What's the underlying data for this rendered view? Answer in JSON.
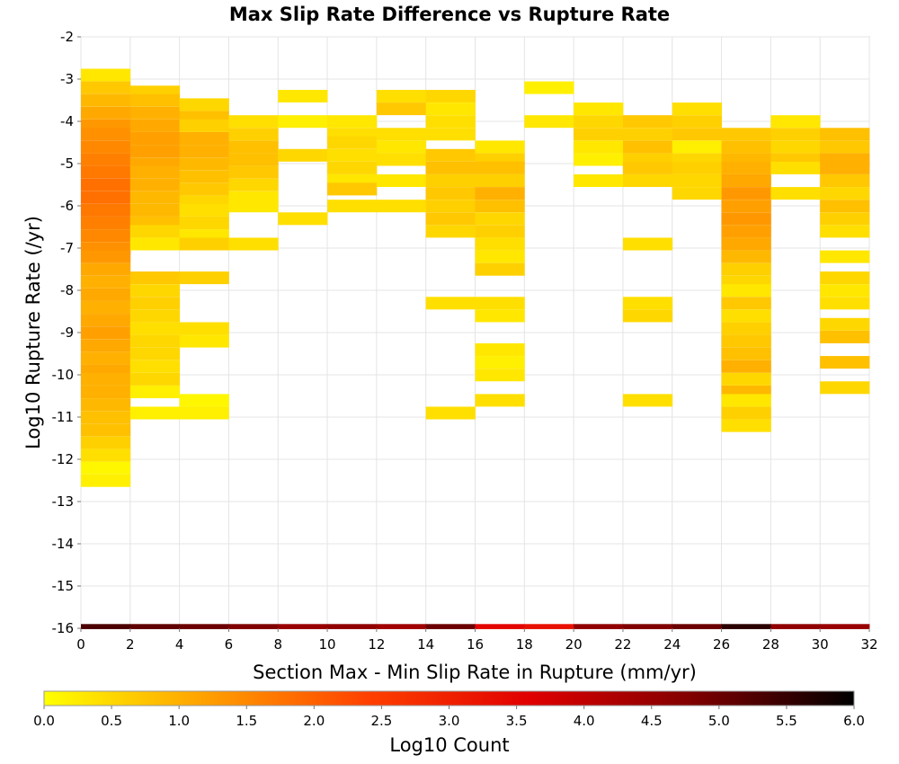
{
  "chart_data": {
    "type": "heatmap",
    "title": "Max Slip Rate Difference vs Rupture Rate",
    "xlabel": "Section Max - Min Slip Rate in Rupture (mm/yr)",
    "ylabel": "Log10 Rupture Rate (/yr)",
    "xlim": [
      0,
      32
    ],
    "ylim": [
      -16,
      -2
    ],
    "x_ticks": [
      "0",
      "2",
      "4",
      "6",
      "8",
      "10",
      "12",
      "14",
      "16",
      "18",
      "20",
      "22",
      "24",
      "26",
      "28",
      "30",
      "32"
    ],
    "y_ticks": [
      "-2",
      "-3",
      "-4",
      "-5",
      "-6",
      "-7",
      "-8",
      "-9",
      "-10",
      "-11",
      "-12",
      "-13",
      "-14",
      "-15",
      "-16"
    ],
    "x_bin_width": 2,
    "y_bin_height": 0.29,
    "grid": true,
    "colorbar": {
      "label": "Log10 Count",
      "range": [
        0,
        6
      ],
      "ticks": [
        "0.0",
        "0.5",
        "1.0",
        "1.5",
        "2.0",
        "2.5",
        "3.0",
        "3.5",
        "4.0",
        "4.5",
        "5.0",
        "5.5",
        "6.0"
      ],
      "colors": [
        "#ffff00",
        "#ffa000",
        "#ff4000",
        "#e00000",
        "#800000",
        "#000000"
      ]
    },
    "columns": [
      {
        "x": 1,
        "cells": [
          [
            -2.9,
            0.3
          ],
          [
            -3.2,
            0.7
          ],
          [
            -3.5,
            0.9
          ],
          [
            -3.8,
            1.1
          ],
          [
            -4.1,
            1.3
          ],
          [
            -4.3,
            1.4
          ],
          [
            -4.6,
            1.5
          ],
          [
            -4.9,
            1.6
          ],
          [
            -5.2,
            1.7
          ],
          [
            -5.5,
            1.8
          ],
          [
            -5.8,
            1.8
          ],
          [
            -6.1,
            1.7
          ],
          [
            -6.4,
            1.6
          ],
          [
            -6.7,
            1.5
          ],
          [
            -7.0,
            1.4
          ],
          [
            -7.2,
            1.3
          ],
          [
            -7.5,
            1.1
          ],
          [
            -7.8,
            1.0
          ],
          [
            -8.1,
            1.1
          ],
          [
            -8.4,
            1.0
          ],
          [
            -8.7,
            1.1
          ],
          [
            -9.0,
            1.2
          ],
          [
            -9.3,
            1.1
          ],
          [
            -9.6,
            1.0
          ],
          [
            -9.9,
            1.1
          ],
          [
            -10.1,
            1.0
          ],
          [
            -10.4,
            1.0
          ],
          [
            -10.7,
            0.9
          ],
          [
            -11.0,
            0.8
          ],
          [
            -11.3,
            0.8
          ],
          [
            -11.6,
            0.6
          ],
          [
            -11.9,
            0.4
          ],
          [
            -12.2,
            0.1
          ],
          [
            -12.5,
            0.2
          ]
        ]
      },
      {
        "x": 3,
        "cells": [
          [
            -3.3,
            0.6
          ],
          [
            -3.5,
            0.8
          ],
          [
            -3.8,
            1.0
          ],
          [
            -4.1,
            1.1
          ],
          [
            -4.4,
            1.2
          ],
          [
            -4.7,
            1.2
          ],
          [
            -5.0,
            1.1
          ],
          [
            -5.2,
            1.0
          ],
          [
            -5.5,
            1.0
          ],
          [
            -5.8,
            0.9
          ],
          [
            -6.1,
            0.9
          ],
          [
            -6.4,
            0.8
          ],
          [
            -6.6,
            0.5
          ],
          [
            -6.9,
            0.3
          ],
          [
            -7.7,
            0.7
          ],
          [
            -8.0,
            0.5
          ],
          [
            -8.3,
            0.6
          ],
          [
            -8.6,
            0.5
          ],
          [
            -8.9,
            0.4
          ],
          [
            -9.2,
            0.5
          ],
          [
            -9.5,
            0.5
          ],
          [
            -9.8,
            0.4
          ],
          [
            -10.1,
            0.5
          ],
          [
            -10.4,
            0.2
          ],
          [
            -10.9,
            0.2
          ]
        ]
      },
      {
        "x": 5,
        "cells": [
          [
            -3.6,
            0.5
          ],
          [
            -3.9,
            0.8
          ],
          [
            -4.1,
            0.6
          ],
          [
            -4.4,
            1.0
          ],
          [
            -4.7,
            1.0
          ],
          [
            -5.0,
            0.9
          ],
          [
            -5.3,
            0.8
          ],
          [
            -5.6,
            0.7
          ],
          [
            -5.9,
            0.5
          ],
          [
            -6.1,
            0.4
          ],
          [
            -6.4,
            0.5
          ],
          [
            -6.7,
            0.3
          ],
          [
            -6.9,
            0.6
          ],
          [
            -7.7,
            0.6
          ],
          [
            -8.9,
            0.4
          ],
          [
            -9.2,
            0.3
          ],
          [
            -10.6,
            0.1
          ],
          [
            -10.9,
            0.2
          ]
        ]
      },
      {
        "x": 7,
        "cells": [
          [
            -4.0,
            0.4
          ],
          [
            -4.3,
            0.6
          ],
          [
            -4.6,
            0.8
          ],
          [
            -4.9,
            0.8
          ],
          [
            -5.2,
            0.7
          ],
          [
            -5.5,
            0.5
          ],
          [
            -5.8,
            0.3
          ],
          [
            -6.0,
            0.3
          ],
          [
            -6.9,
            0.4
          ]
        ]
      },
      {
        "x": 9,
        "cells": [
          [
            -3.4,
            0.3
          ],
          [
            -4.0,
            0.2
          ],
          [
            -4.8,
            0.5
          ],
          [
            -6.3,
            0.4
          ]
        ]
      },
      {
        "x": 11,
        "cells": [
          [
            -4.0,
            0.3
          ],
          [
            -4.3,
            0.4
          ],
          [
            -4.5,
            0.5
          ],
          [
            -4.8,
            0.4
          ],
          [
            -5.1,
            0.5
          ],
          [
            -5.4,
            0.3
          ],
          [
            -5.6,
            0.7
          ],
          [
            -6.0,
            0.4
          ]
        ]
      },
      {
        "x": 13,
        "cells": [
          [
            -3.4,
            0.4
          ],
          [
            -3.7,
            0.7
          ],
          [
            -4.3,
            0.4
          ],
          [
            -4.6,
            0.3
          ],
          [
            -4.9,
            0.4
          ],
          [
            -5.4,
            0.3
          ],
          [
            -6.0,
            0.4
          ]
        ]
      },
      {
        "x": 15,
        "cells": [
          [
            -3.4,
            0.5
          ],
          [
            -3.7,
            0.3
          ],
          [
            -4.0,
            0.4
          ],
          [
            -4.3,
            0.4
          ],
          [
            -4.8,
            0.7
          ],
          [
            -5.1,
            0.8
          ],
          [
            -5.4,
            0.6
          ],
          [
            -5.7,
            0.7
          ],
          [
            -6.0,
            0.6
          ],
          [
            -6.3,
            0.7
          ],
          [
            -6.6,
            0.5
          ],
          [
            -8.3,
            0.4
          ],
          [
            -10.9,
            0.4
          ]
        ]
      },
      {
        "x": 17,
        "cells": [
          [
            -4.6,
            0.3
          ],
          [
            -4.9,
            0.6
          ],
          [
            -5.1,
            0.8
          ],
          [
            -5.4,
            0.6
          ],
          [
            -5.7,
            1.0
          ],
          [
            -6.0,
            0.8
          ],
          [
            -6.3,
            0.5
          ],
          [
            -6.6,
            0.6
          ],
          [
            -6.9,
            0.4
          ],
          [
            -7.2,
            0.3
          ],
          [
            -7.5,
            0.6
          ],
          [
            -8.3,
            0.4
          ],
          [
            -8.6,
            0.3
          ],
          [
            -9.4,
            0.3
          ],
          [
            -9.7,
            0.2
          ],
          [
            -10.0,
            0.3
          ],
          [
            -10.6,
            0.4
          ]
        ]
      },
      {
        "x": 19,
        "cells": [
          [
            -3.2,
            0.2
          ],
          [
            -4.0,
            0.3
          ]
        ]
      },
      {
        "x": 21,
        "cells": [
          [
            -3.7,
            0.3
          ],
          [
            -4.0,
            0.5
          ],
          [
            -4.3,
            0.6
          ],
          [
            -4.6,
            0.3
          ],
          [
            -4.9,
            0.2
          ],
          [
            -5.4,
            0.3
          ]
        ]
      },
      {
        "x": 23,
        "cells": [
          [
            -4.0,
            0.7
          ],
          [
            -4.3,
            0.6
          ],
          [
            -4.6,
            0.8
          ],
          [
            -4.9,
            0.6
          ],
          [
            -5.1,
            0.7
          ],
          [
            -5.4,
            0.5
          ],
          [
            -6.9,
            0.4
          ],
          [
            -8.3,
            0.4
          ],
          [
            -8.6,
            0.5
          ],
          [
            -10.6,
            0.4
          ]
        ]
      },
      {
        "x": 25,
        "cells": [
          [
            -3.7,
            0.4
          ],
          [
            -4.0,
            0.6
          ],
          [
            -4.3,
            0.7
          ],
          [
            -4.6,
            0.2
          ],
          [
            -4.9,
            0.5
          ],
          [
            -5.1,
            0.6
          ],
          [
            -5.4,
            0.5
          ],
          [
            -5.7,
            0.5
          ]
        ]
      },
      {
        "x": 27,
        "cells": [
          [
            -4.3,
            0.7
          ],
          [
            -4.6,
            0.8
          ],
          [
            -4.9,
            0.9
          ],
          [
            -5.1,
            1.0
          ],
          [
            -5.4,
            1.1
          ],
          [
            -5.7,
            1.3
          ],
          [
            -6.0,
            1.2
          ],
          [
            -6.3,
            1.3
          ],
          [
            -6.6,
            1.2
          ],
          [
            -6.9,
            1.1
          ],
          [
            -7.2,
            0.9
          ],
          [
            -7.5,
            0.6
          ],
          [
            -7.8,
            0.5
          ],
          [
            -8.0,
            0.3
          ],
          [
            -8.3,
            0.7
          ],
          [
            -8.6,
            0.4
          ],
          [
            -8.9,
            0.6
          ],
          [
            -9.2,
            0.7
          ],
          [
            -9.5,
            0.8
          ],
          [
            -9.8,
            1.0
          ],
          [
            -10.1,
            0.5
          ],
          [
            -10.4,
            0.9
          ],
          [
            -10.6,
            0.3
          ],
          [
            -10.9,
            0.6
          ],
          [
            -11.2,
            0.4
          ]
        ]
      },
      {
        "x": 29,
        "cells": [
          [
            -4.0,
            0.3
          ],
          [
            -4.3,
            0.6
          ],
          [
            -4.6,
            0.5
          ],
          [
            -4.9,
            0.7
          ],
          [
            -5.1,
            0.4
          ],
          [
            -5.7,
            0.4
          ]
        ]
      },
      {
        "x": 31,
        "cells": [
          [
            -4.3,
            0.8
          ],
          [
            -4.6,
            0.7
          ],
          [
            -4.9,
            1.0
          ],
          [
            -5.1,
            1.0
          ],
          [
            -5.4,
            0.7
          ],
          [
            -5.7,
            0.5
          ],
          [
            -6.0,
            0.8
          ],
          [
            -6.3,
            0.6
          ],
          [
            -6.6,
            0.4
          ],
          [
            -7.2,
            0.3
          ],
          [
            -7.7,
            0.5
          ],
          [
            -8.0,
            0.3
          ],
          [
            -8.3,
            0.4
          ],
          [
            -8.8,
            0.5
          ],
          [
            -9.1,
            0.8
          ],
          [
            -9.7,
            0.8
          ],
          [
            -10.3,
            0.5
          ]
        ]
      }
    ],
    "bottom_row": {
      "y": -16,
      "cells": [
        [
          1,
          5.3
        ],
        [
          3,
          5.1
        ],
        [
          5,
          5.0
        ],
        [
          7,
          4.8
        ],
        [
          9,
          4.5
        ],
        [
          11,
          4.6
        ],
        [
          13,
          4.4
        ],
        [
          15,
          5.0
        ],
        [
          17,
          3.5
        ],
        [
          19,
          3.3
        ],
        [
          21,
          4.6
        ],
        [
          23,
          4.8
        ],
        [
          25,
          5.0
        ],
        [
          27,
          5.6
        ],
        [
          29,
          4.6
        ],
        [
          31,
          4.5
        ]
      ]
    }
  }
}
